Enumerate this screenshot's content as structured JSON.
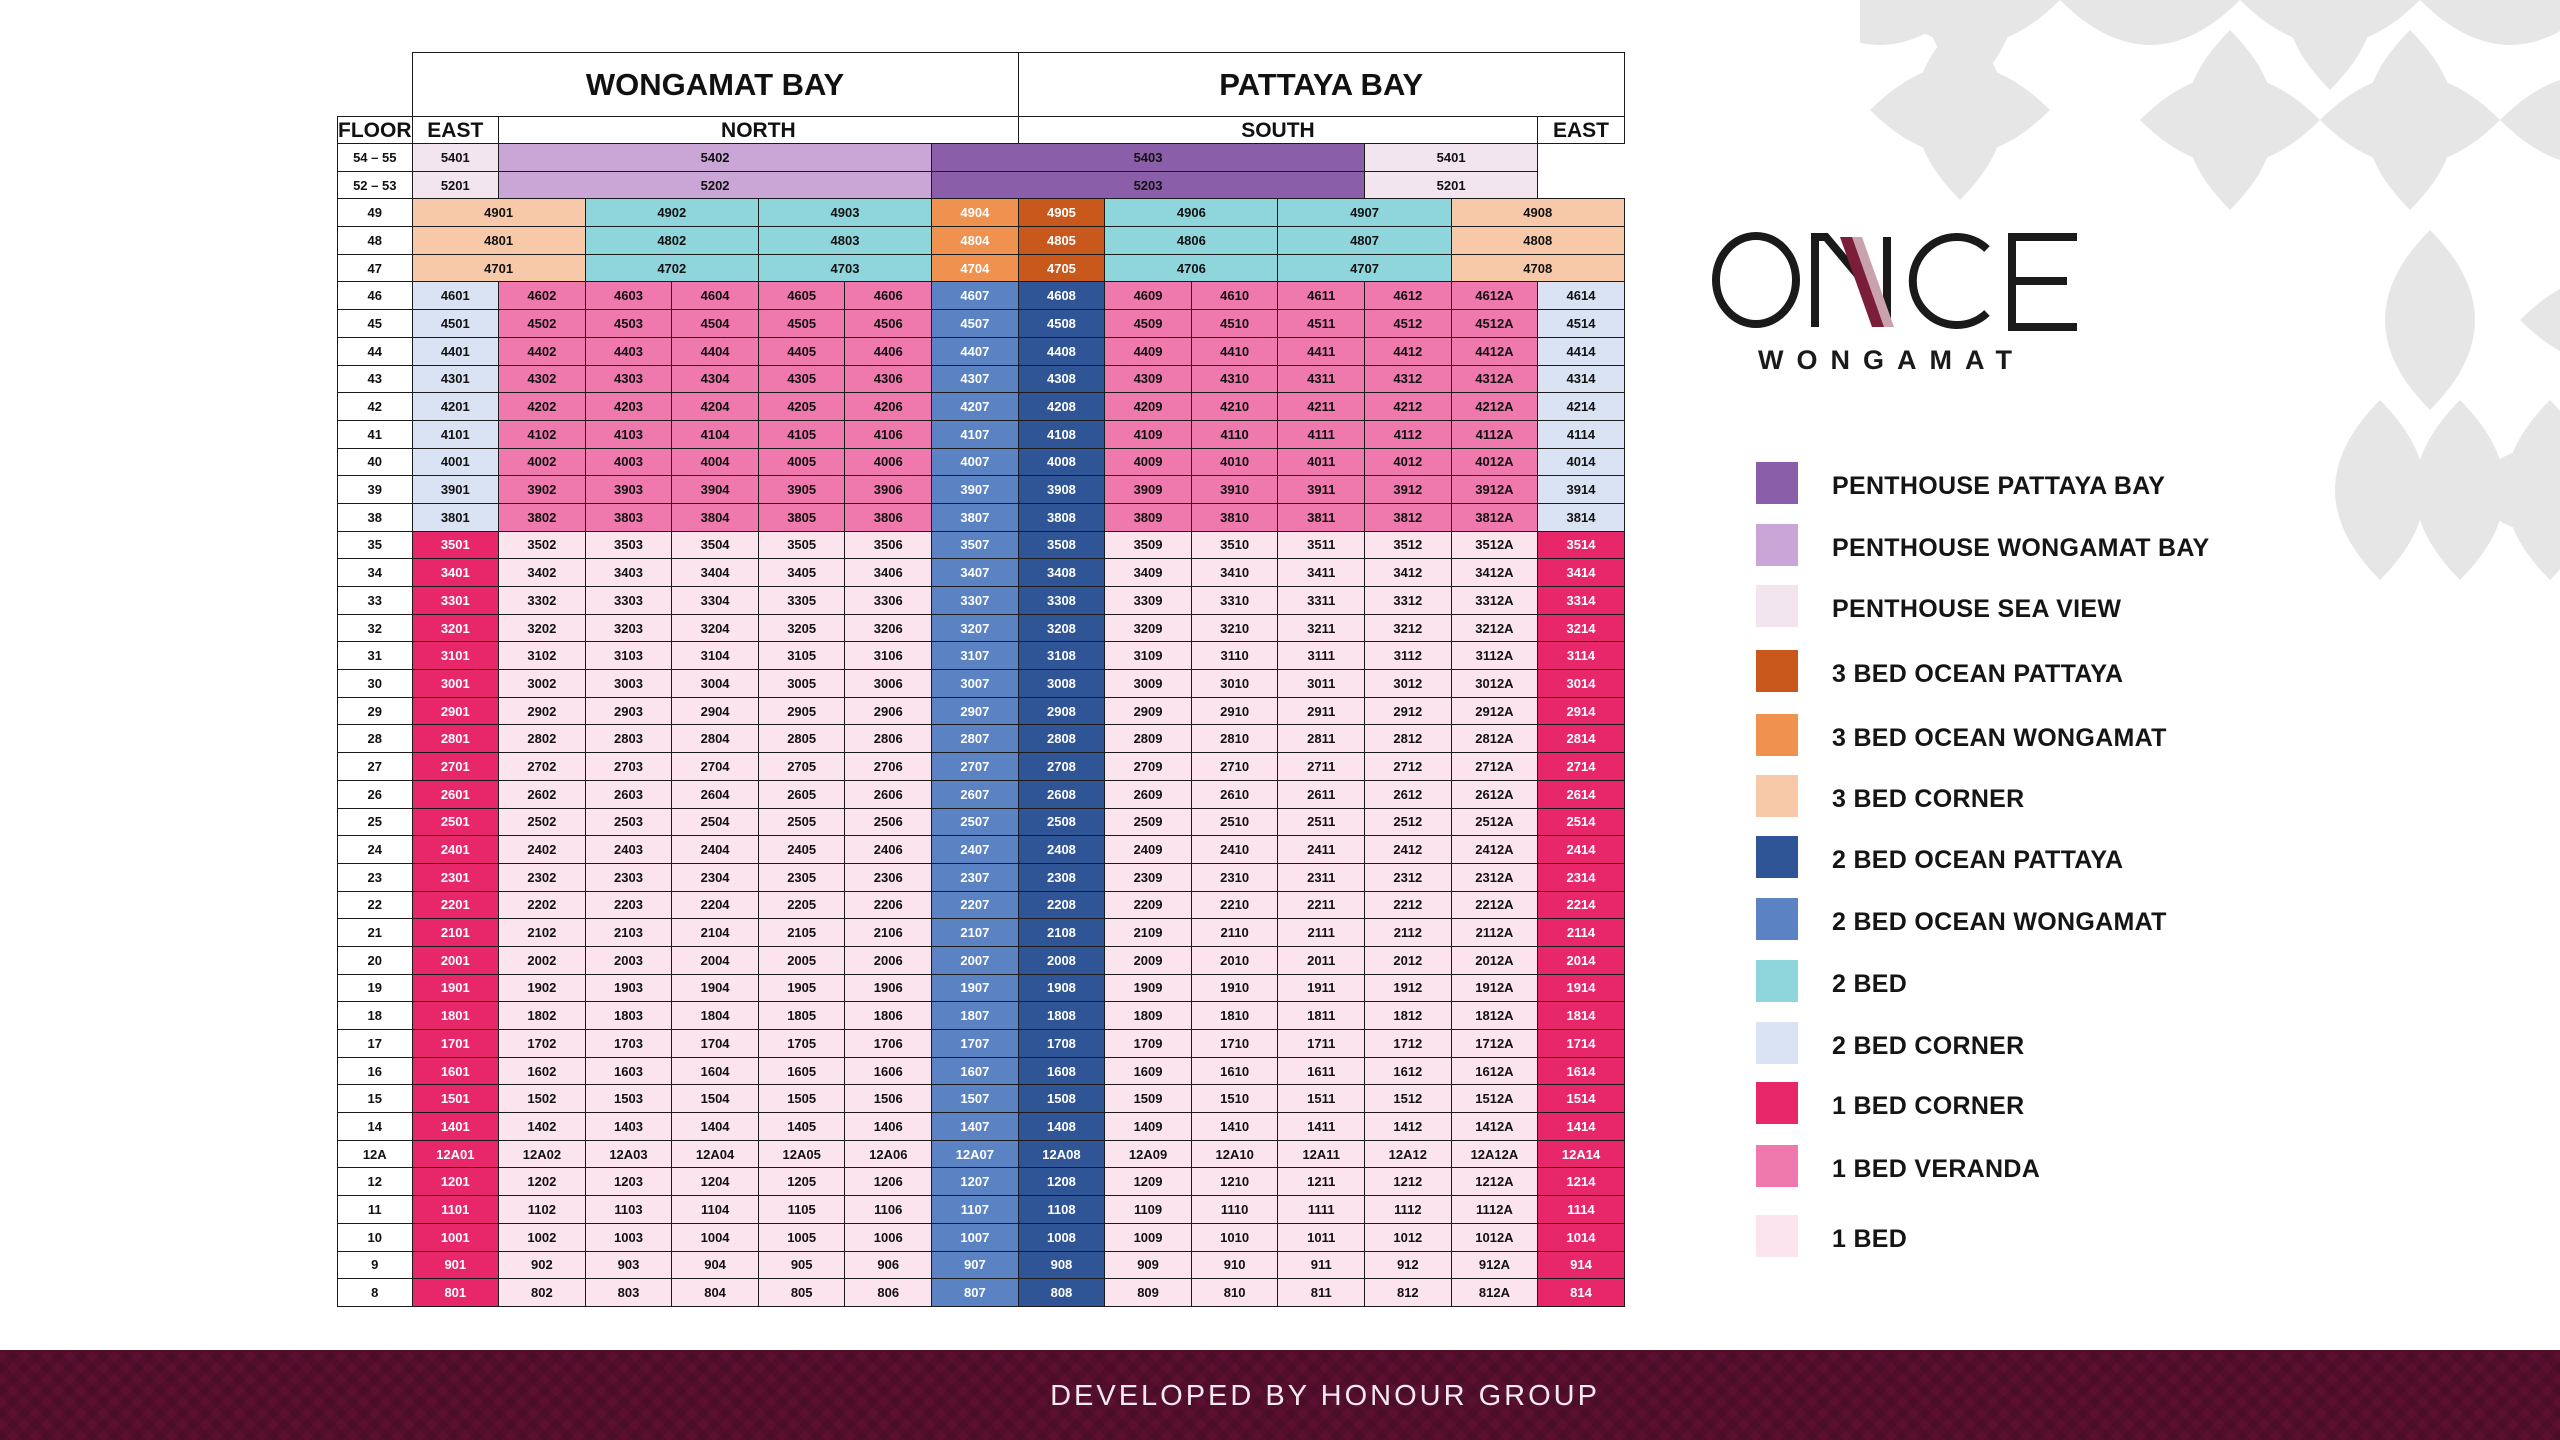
{
  "header": {
    "wongamat_bay": "WONGAMAT BAY",
    "pattaya_bay": "PATTAYA BAY"
  },
  "columns": {
    "floor": "FLOOR",
    "east_left": "EAST",
    "north": "NORTH",
    "south": "SOUTH",
    "east_right": "EAST"
  },
  "colors": {
    "penthouse_pattaya": "#8a5ea8",
    "penthouse_wongamat": "#c9a6d6",
    "penthouse_sea_view": "#f2e5f0",
    "three_bed_ocean_pattaya": "#c8581c",
    "three_bed_ocean_wongamat": "#f0924f",
    "three_bed_corner": "#f8c9a8",
    "two_bed_ocean_pattaya": "#2f5597",
    "two_bed_ocean_wongamat": "#5b83c4",
    "two_bed": "#8fd5dc",
    "two_bed_corner": "#dae3f3",
    "one_bed_corner": "#e8276a",
    "one_bed_veranda": "#ef79ad",
    "one_bed": "#fce4ef"
  },
  "penthouse_rows": [
    {
      "floor": "54 – 55",
      "east": "5401",
      "north": "5402",
      "south": "5403",
      "east_right": "5401"
    },
    {
      "floor": "52 – 53",
      "east": "5201",
      "north": "5202",
      "south": "5203",
      "east_right": "5201"
    }
  ],
  "three_bed_rows": [
    {
      "floor": "49",
      "units": [
        "4901",
        "4902",
        "4903",
        "4904",
        "4905",
        "4906",
        "4907",
        "4908"
      ]
    },
    {
      "floor": "48",
      "units": [
        "4801",
        "4802",
        "4803",
        "4804",
        "4805",
        "4806",
        "4807",
        "4808"
      ]
    },
    {
      "floor": "47",
      "units": [
        "4701",
        "4702",
        "4703",
        "4704",
        "4705",
        "4706",
        "4707",
        "4708"
      ]
    }
  ],
  "upper_floors": [
    "46",
    "45",
    "44",
    "43",
    "42",
    "41",
    "40",
    "39",
    "38"
  ],
  "lower_floors": [
    "35",
    "34",
    "33",
    "32",
    "31",
    "30",
    "29",
    "28",
    "27",
    "26",
    "25",
    "24",
    "23",
    "22",
    "21",
    "20",
    "19",
    "18",
    "17",
    "16",
    "15",
    "14",
    "12A",
    "12",
    "11",
    "10",
    "9",
    "8"
  ],
  "unit_suffixes": [
    "01",
    "02",
    "03",
    "04",
    "05",
    "06",
    "07",
    "08",
    "09",
    "10",
    "11",
    "12",
    "12A",
    "14"
  ],
  "floor_12a_units": [
    "12A01",
    "12A02",
    "12A03",
    "12A04",
    "12A05",
    "12A06",
    "12A07",
    "12A08",
    "12A09",
    "12A10",
    "12A11",
    "12A12",
    "12A12A",
    "12A14"
  ],
  "logo": {
    "word": "ONCE",
    "sub": "WONGAMAT"
  },
  "legend": [
    {
      "label": "PENTHOUSE PATTAYA BAY",
      "color": "#8a5ea8"
    },
    {
      "label": "PENTHOUSE WONGAMAT BAY",
      "color": "#c9a6d6"
    },
    {
      "label": "PENTHOUSE SEA VIEW",
      "color": "#f2e5f0"
    },
    {
      "label": "3 BED OCEAN PATTAYA",
      "color": "#c8581c"
    },
    {
      "label": "3 BED OCEAN WONGAMAT",
      "color": "#f0924f"
    },
    {
      "label": "3 BED CORNER",
      "color": "#f8c9a8"
    },
    {
      "label": "2 BED OCEAN PATTAYA",
      "color": "#2f5597"
    },
    {
      "label": "2 BED OCEAN WONGAMAT",
      "color": "#5b83c4"
    },
    {
      "label": "2 BED",
      "color": "#8fd5dc"
    },
    {
      "label": "2 BED CORNER",
      "color": "#dae3f3"
    },
    {
      "label": "1 BED CORNER",
      "color": "#e8276a"
    },
    {
      "label": "1 BED VERANDA",
      "color": "#ef79ad"
    },
    {
      "label": "1 BED",
      "color": "#fce4ef"
    }
  ],
  "footer": {
    "text": "DEVELOPED BY HONOUR GROUP"
  }
}
